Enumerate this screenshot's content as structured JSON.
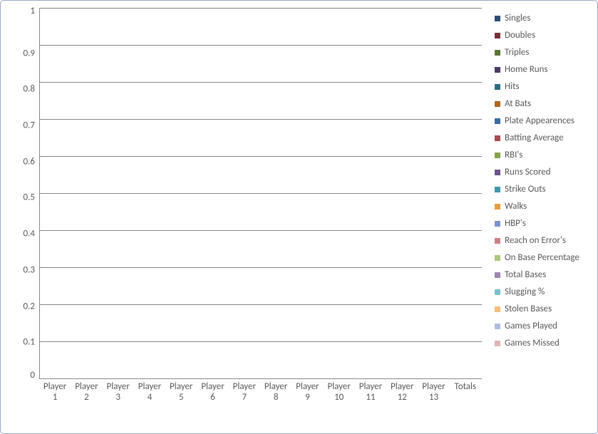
{
  "chart": {
    "type": "bar",
    "background_color": "#ffffff",
    "border_color": "#9aa7c7",
    "grid_color": "#868686",
    "axis_color": "#888888",
    "font_family": "Calibri",
    "tick_fontsize": 13,
    "legend_fontsize": 13,
    "text_color": "#595959",
    "ylim": [
      0,
      1
    ],
    "ytick_step": 0.1,
    "yticks": [
      "1",
      "0.9",
      "0.8",
      "0.7",
      "0.6",
      "0.5",
      "0.4",
      "0.3",
      "0.2",
      "0.1",
      "0"
    ],
    "categories": [
      "Player 1",
      "Player 2",
      "Player 3",
      "Player 4",
      "Player 5",
      "Player 6",
      "Player 7",
      "Player 8",
      "Player 9",
      "Player 10",
      "Player 11",
      "Player 12",
      "Player 13",
      "Totals"
    ],
    "series": [
      {
        "name": "Singles",
        "color": "#2b4d74",
        "values": [
          0,
          0,
          0,
          0,
          0,
          0,
          0,
          0,
          0,
          0,
          0,
          0,
          0,
          0
        ]
      },
      {
        "name": "Doubles",
        "color": "#773037",
        "values": [
          0,
          0,
          0,
          0,
          0,
          0,
          0,
          0,
          0,
          0,
          0,
          0,
          0,
          0
        ]
      },
      {
        "name": "Triples",
        "color": "#5e7434",
        "values": [
          0,
          0,
          0,
          0,
          0,
          0,
          0,
          0,
          0,
          0,
          0,
          0,
          0,
          0
        ]
      },
      {
        "name": "Home Runs",
        "color": "#4c3a60",
        "values": [
          0,
          0,
          0,
          0,
          0,
          0,
          0,
          0,
          0,
          0,
          0,
          0,
          0,
          0
        ]
      },
      {
        "name": "Hits",
        "color": "#2a6d7e",
        "values": [
          0,
          0,
          0,
          0,
          0,
          0,
          0,
          0,
          0,
          0,
          0,
          0,
          0,
          0
        ]
      },
      {
        "name": "At Bats",
        "color": "#b5651d",
        "values": [
          0,
          0,
          0,
          0,
          0,
          0,
          0,
          0,
          0,
          0,
          0,
          0,
          0,
          0
        ]
      },
      {
        "name": "Plate Appearences",
        "color": "#3a6ca4",
        "values": [
          0,
          0,
          0,
          0,
          0,
          0,
          0,
          0,
          0,
          0,
          0,
          0,
          0,
          0
        ]
      },
      {
        "name": "Batting Average",
        "color": "#a94a53",
        "values": [
          0,
          0,
          0,
          0,
          0,
          0,
          0,
          0,
          0,
          0,
          0,
          0,
          0,
          0
        ]
      },
      {
        "name": "RBI's",
        "color": "#86a248",
        "values": [
          0,
          0,
          0,
          0,
          0,
          0,
          0,
          0,
          0,
          0,
          0,
          0,
          0,
          0
        ]
      },
      {
        "name": "Runs Scored",
        "color": "#6c548c",
        "values": [
          0,
          0,
          0,
          0,
          0,
          0,
          0,
          0,
          0,
          0,
          0,
          0,
          0,
          0
        ]
      },
      {
        "name": "Strike Outs",
        "color": "#3e97ab",
        "values": [
          0,
          0,
          0,
          0,
          0,
          0,
          0,
          0,
          0,
          0,
          0,
          0,
          0,
          0
        ]
      },
      {
        "name": "Walks",
        "color": "#e59c3c",
        "values": [
          0,
          0,
          0,
          0,
          0,
          0,
          0,
          0,
          0,
          0,
          0,
          0,
          0,
          0
        ]
      },
      {
        "name": "HBP's",
        "color": "#7c91c7",
        "values": [
          0,
          0,
          0,
          0,
          0,
          0,
          0,
          0,
          0,
          0,
          0,
          0,
          0,
          0
        ]
      },
      {
        "name": "Reach on Error's",
        "color": "#c98086",
        "values": [
          0,
          0,
          0,
          0,
          0,
          0,
          0,
          0,
          0,
          0,
          0,
          0,
          0,
          0
        ]
      },
      {
        "name": "On Base Percentage",
        "color": "#aec77e",
        "values": [
          0,
          0,
          0,
          0,
          0,
          0,
          0,
          0,
          0,
          0,
          0,
          0,
          0,
          0
        ]
      },
      {
        "name": "Total Bases",
        "color": "#9a88b1",
        "values": [
          0,
          0,
          0,
          0,
          0,
          0,
          0,
          0,
          0,
          0,
          0,
          0,
          0,
          0
        ]
      },
      {
        "name": "Slugging %",
        "color": "#7cc0cd",
        "values": [
          0,
          0,
          0,
          0,
          0,
          0,
          0,
          0,
          0,
          0,
          0,
          0,
          0,
          0
        ]
      },
      {
        "name": "Stolen Bases",
        "color": "#f2c078",
        "values": [
          0,
          0,
          0,
          0,
          0,
          0,
          0,
          0,
          0,
          0,
          0,
          0,
          0,
          0
        ]
      },
      {
        "name": "Games Played",
        "color": "#aebdde",
        "values": [
          0,
          0,
          0,
          0,
          0,
          0,
          0,
          0,
          0,
          0,
          0,
          0,
          0,
          0
        ]
      },
      {
        "name": "Games Missed",
        "color": "#dfb4b8",
        "values": [
          0,
          0,
          0,
          0,
          0,
          0,
          0,
          0,
          0,
          0,
          0,
          0,
          0,
          0
        ]
      }
    ]
  }
}
